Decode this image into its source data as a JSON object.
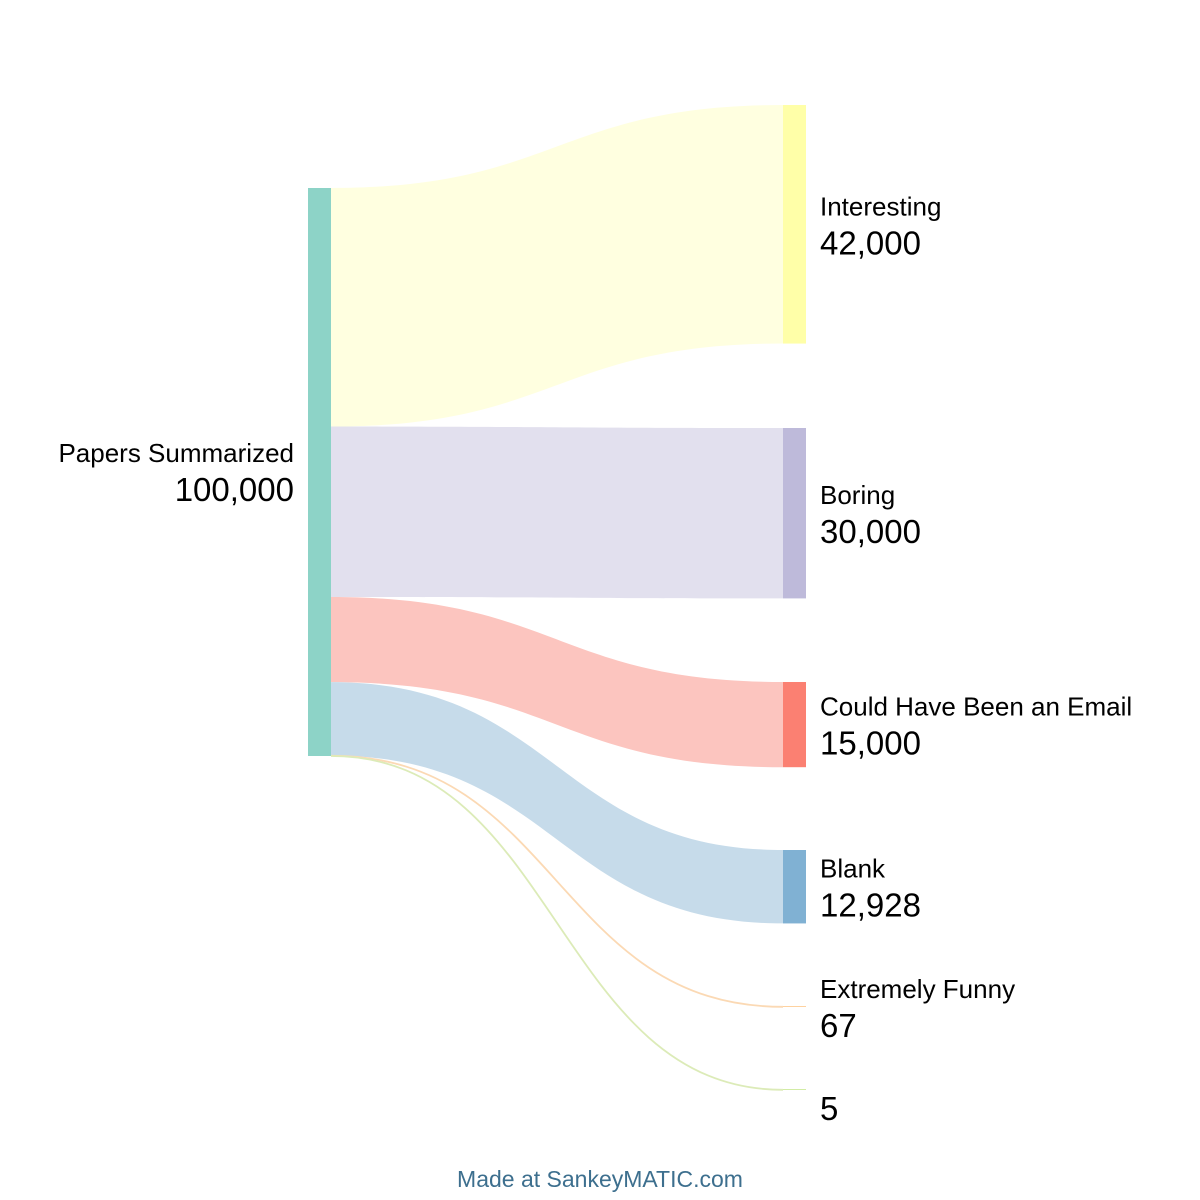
{
  "chart_data": {
    "type": "sankey",
    "source": {
      "name": "Papers Summarized",
      "value": "100,000",
      "color": "#8dd3c7"
    },
    "targets": [
      {
        "name": "Interesting",
        "value": "42,000",
        "amount": 42000,
        "node_color": "#ffffa8",
        "flow_color": "#ffffe0"
      },
      {
        "name": "Boring",
        "value": "30,000",
        "amount": 30000,
        "node_color": "#bebada",
        "flow_color": "#e2e0ee"
      },
      {
        "name": "Could Have Been an Email",
        "value": "15,000",
        "amount": 15000,
        "node_color": "#fb8072",
        "flow_color": "#fcc5bf"
      },
      {
        "name": "Blank",
        "value": "12,928",
        "amount": 12928,
        "node_color": "#80b1d3",
        "flow_color": "#c6dbea"
      },
      {
        "name": "Extremely Funny",
        "value": "67",
        "amount": 67,
        "node_color": "#fdb462",
        "flow_color": "#fbd9b4"
      },
      {
        "name": "",
        "value": "5",
        "amount": 5,
        "node_color": "#b3de69",
        "flow_color": "#dcebb8"
      }
    ]
  },
  "footer": {
    "credit": "Made at SankeyMATIC.com"
  }
}
